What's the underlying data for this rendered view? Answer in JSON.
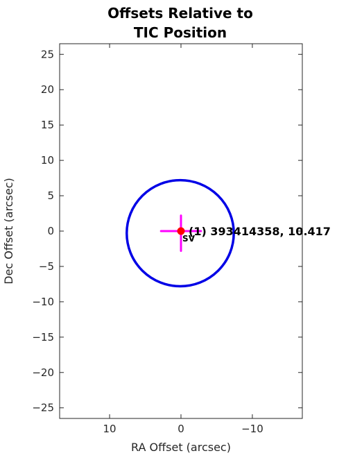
{
  "chart_data": {
    "type": "scatter",
    "title": [
      "Offsets Relative to",
      "TIC Position"
    ],
    "xlabel": "RA Offset (arcsec)",
    "ylabel": "Dec Offset (arcsec)",
    "xlim": [
      17,
      -17
    ],
    "ylim": [
      -26.5,
      26.5
    ],
    "x_reversed": true,
    "xticks": [
      10,
      0,
      -10
    ],
    "xtick_labels": [
      "10",
      "0",
      "−10"
    ],
    "yticks": [
      25,
      20,
      15,
      10,
      5,
      0,
      -5,
      -10,
      -15,
      -20,
      -25
    ],
    "ytick_labels": [
      "25",
      "20",
      "15",
      "10",
      "5",
      "0",
      "−5",
      "−10",
      "−15",
      "−20",
      "−25"
    ],
    "grid": false,
    "circle": {
      "center": [
        0.1,
        -0.3
      ],
      "radius": 7.5,
      "color": "#0000e6"
    },
    "error_cross": {
      "center": [
        0,
        0
      ],
      "x_range": [
        2.8,
        -2.8
      ],
      "y_range": [
        -2.8,
        2.2
      ],
      "color": "#ff00ff"
    },
    "points": [
      {
        "x": 0,
        "y": 0,
        "color": "#ff0000",
        "label": "(1) 393414358, 10.417"
      }
    ],
    "secondary_label": {
      "x": -0.2,
      "y": -0.7,
      "text": "SV"
    }
  }
}
